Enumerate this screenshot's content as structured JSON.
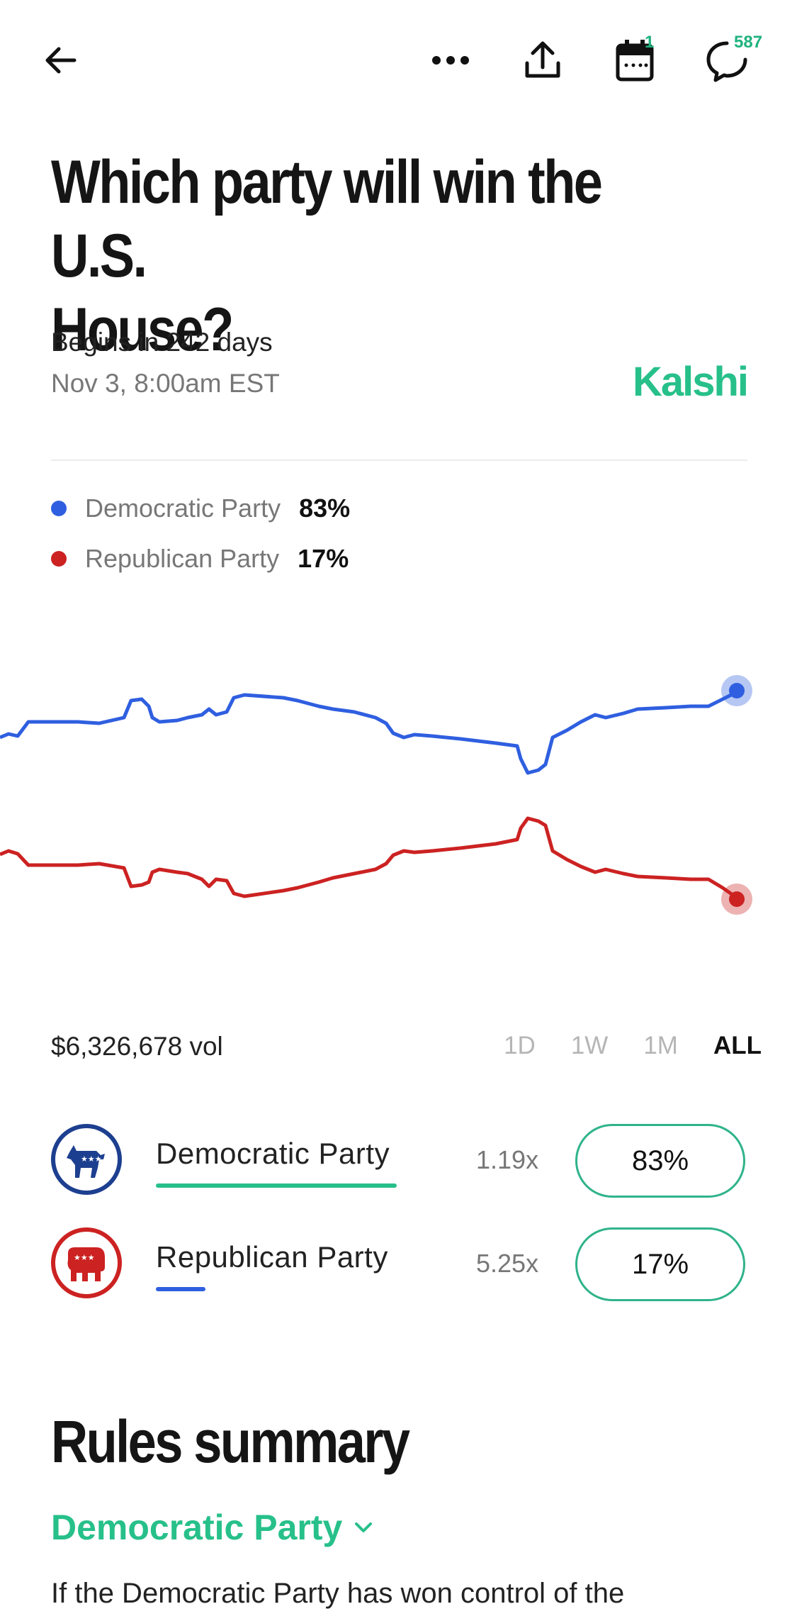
{
  "topbar": {
    "back_icon": "arrow-left-icon",
    "more_icon": "more-dots-icon",
    "share_icon": "share-upload-icon",
    "calendar_icon": "calendar-icon",
    "calendar_badge": "1",
    "comments_icon": "comment-bubble-icon",
    "comments_count": "587"
  },
  "header": {
    "title_line1": "Which party will win the U.S.",
    "title_line2": "House?",
    "begins": "Begins in 242 days",
    "date": "Nov 3, 8:00am EST",
    "brand": "Kalshi"
  },
  "legend": [
    {
      "name": "Democratic Party",
      "pct": "83%",
      "color": "#2f5fe0"
    },
    {
      "name": "Republican Party",
      "pct": "17%",
      "color": "#cc2222"
    }
  ],
  "chart": {
    "volume": "$6,326,678 vol",
    "ranges": [
      "1D",
      "1W",
      "1M",
      "ALL"
    ],
    "active_range": "ALL"
  },
  "outcomes": [
    {
      "name": "Democratic Party",
      "multiplier": "1.19x",
      "pct": "83%",
      "logo": "democratic-donkey-logo",
      "bar_color": "#27c08a",
      "ring_color": "#1d3f8f"
    },
    {
      "name": "Republican Party",
      "multiplier": "5.25x",
      "pct": "17%",
      "logo": "republican-elephant-logo",
      "bar_color": "#2f5fe0",
      "ring_color": "#cc2222"
    }
  ],
  "rules": {
    "title": "Rules summary",
    "selector": "Democratic Party",
    "text": "If the Democratic Party has won control of the"
  }
}
